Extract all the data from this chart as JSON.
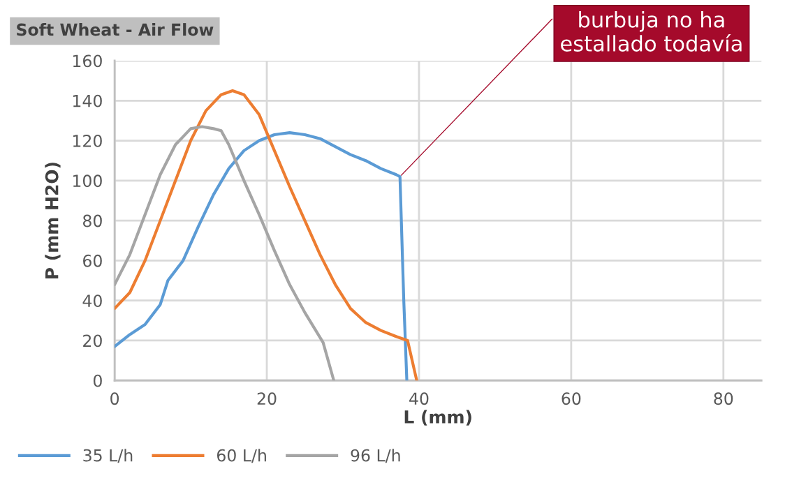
{
  "chart_data": {
    "type": "line",
    "title": "Soft Wheat - Air Flow",
    "xlabel": "L (mm)",
    "ylabel": "P (mm H2O)",
    "xlim": [
      0,
      85
    ],
    "xticks": [
      0,
      20,
      40,
      60,
      80
    ],
    "ylim": [
      0,
      160
    ],
    "yticks": [
      0,
      20,
      40,
      60,
      80,
      100,
      120,
      140,
      160
    ],
    "grid": true,
    "legend": "bottom",
    "marker": "none",
    "line_style": "solid",
    "annotations": [
      {
        "text": "burbuja no ha estallado todavía",
        "x": 37.5,
        "y": 102
      }
    ],
    "series": [
      {
        "name": "35 L/h",
        "color": "#5b9bd5",
        "x": [
          0,
          2,
          4,
          6,
          7,
          9,
          11,
          13,
          15,
          17,
          19,
          21,
          23,
          25,
          27,
          29,
          31,
          33,
          35,
          37,
          37.5,
          38,
          38.4
        ],
        "values": [
          17,
          23,
          28,
          38,
          50,
          60,
          77,
          93,
          106,
          115,
          120,
          123,
          124,
          123,
          121,
          117,
          113,
          110,
          106,
          103,
          102,
          40,
          0
        ]
      },
      {
        "name": "60 L/h",
        "color": "#ed7d31",
        "x": [
          0,
          2,
          4,
          6,
          8,
          10,
          12,
          14,
          15.5,
          17,
          19,
          21,
          23,
          25,
          27,
          29,
          31,
          33,
          35,
          37,
          38.5,
          39.7
        ],
        "values": [
          36,
          44,
          60,
          80,
          100,
          120,
          135,
          143,
          145,
          143,
          133,
          115,
          97,
          80,
          63,
          48,
          36,
          29,
          25,
          22,
          20,
          0
        ]
      },
      {
        "name": "96 L/h",
        "color": "#a5a5a5",
        "x": [
          0,
          2,
          4,
          6,
          8,
          10,
          11.5,
          13,
          14,
          15,
          17,
          19,
          21,
          23,
          25,
          27.4,
          28.8
        ],
        "values": [
          48,
          63,
          83,
          103,
          118,
          126,
          127,
          126,
          125,
          118,
          100,
          83,
          65,
          48,
          34,
          19,
          0
        ]
      }
    ]
  }
}
